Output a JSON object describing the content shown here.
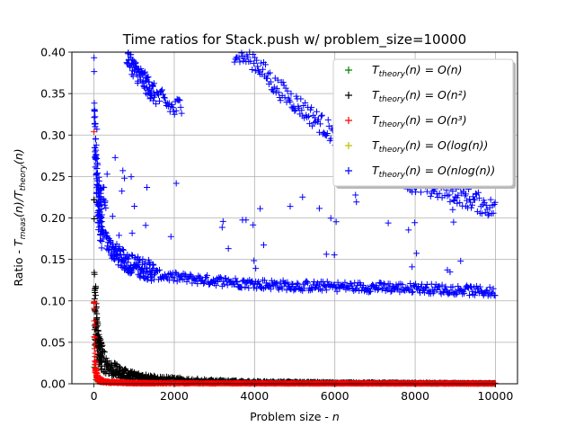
{
  "chart_data": {
    "type": "scatter",
    "title": "Time ratios for Stack.push w/ problem_size=10000",
    "xlabel": "Problem size - n",
    "ylabel": "Ratio - T_meas(n)/T_theory(n)",
    "xlim": [
      -550,
      10550
    ],
    "ylim": [
      0.0,
      0.4
    ],
    "xticks": [
      0,
      2000,
      4000,
      6000,
      8000,
      10000
    ],
    "xtick_labels": [
      "0",
      "2000",
      "4000",
      "6000",
      "8000",
      "10000"
    ],
    "yticks": [
      0.0,
      0.05,
      0.1,
      0.15,
      0.2,
      0.25,
      0.3,
      0.35,
      0.4
    ],
    "ytick_labels": [
      "0.00",
      "0.05",
      "0.10",
      "0.15",
      "0.20",
      "0.25",
      "0.30",
      "0.35",
      "0.40"
    ],
    "grid": true,
    "marker": "+",
    "legend_position": "top-right",
    "series": [
      {
        "name": "T_theory(n) = O(n)",
        "legend_main": "T",
        "legend_sub": "theory",
        "legend_rest": "(n) = O(n)",
        "color": "#008000",
        "note_shape": "near-constant tiny ratio",
        "points": [
          [
            10,
            0.02
          ],
          [
            50,
            0.005
          ],
          [
            200,
            0.002
          ],
          [
            1000,
            0.0007
          ],
          [
            5000,
            0.0003
          ],
          [
            10000,
            0.0002
          ]
        ]
      },
      {
        "name": "T_theory(n) = O(n^2)",
        "legend_main": "T",
        "legend_sub": "theory",
        "legend_rest": "(n) = O(n²)",
        "color": "#000000",
        "anchors": [
          [
            1,
            0.22
          ],
          [
            10,
            0.13
          ],
          [
            30,
            0.09
          ],
          [
            60,
            0.06
          ],
          [
            100,
            0.045
          ],
          [
            200,
            0.03
          ],
          [
            400,
            0.018
          ],
          [
            700,
            0.012
          ],
          [
            1000,
            0.009
          ],
          [
            1500,
            0.006
          ],
          [
            2000,
            0.005
          ],
          [
            3000,
            0.003
          ],
          [
            4000,
            0.002
          ],
          [
            6000,
            0.0012
          ],
          [
            8000,
            0.0008
          ],
          [
            10000,
            0.0005
          ]
        ]
      },
      {
        "name": "T_theory(n) = O(n^3)",
        "legend_main": "T",
        "legend_sub": "theory",
        "legend_rest": "(n) = O(n³)",
        "color": "#ff0000",
        "anchors": [
          [
            1,
            0.23
          ],
          [
            5,
            0.11
          ],
          [
            10,
            0.06
          ],
          [
            20,
            0.035
          ],
          [
            50,
            0.012
          ],
          [
            100,
            0.005
          ],
          [
            300,
            0.002
          ],
          [
            1000,
            0.0008
          ],
          [
            3000,
            0.0005
          ],
          [
            10000,
            0.0003
          ]
        ]
      },
      {
        "name": "T_theory(n) = O(log(n))",
        "legend_main": "T",
        "legend_sub": "theory",
        "legend_rest": "(n) = O(log(n))",
        "color": "#bfbf00",
        "note_shape": "values far above the visible y-range",
        "points": []
      },
      {
        "name": "T_theory(n) = O(nlog(n))",
        "legend_main": "T",
        "legend_sub": "theory",
        "legend_rest": "(n) = O(nlog(n))",
        "color": "#0000ff",
        "lower_band_anchors": [
          [
            1,
            0.39
          ],
          [
            10,
            0.3
          ],
          [
            50,
            0.25
          ],
          [
            100,
            0.21
          ],
          [
            200,
            0.18
          ],
          [
            400,
            0.16
          ],
          [
            700,
            0.145
          ],
          [
            1000,
            0.138
          ],
          [
            1500,
            0.13
          ],
          [
            2000,
            0.126
          ],
          [
            3000,
            0.122
          ],
          [
            4000,
            0.118
          ],
          [
            5000,
            0.116
          ],
          [
            6000,
            0.115
          ],
          [
            7000,
            0.114
          ],
          [
            8000,
            0.113
          ],
          [
            9000,
            0.111
          ],
          [
            10000,
            0.108
          ]
        ],
        "upper_band_anchors": [
          [
            800,
            0.4
          ],
          [
            1000,
            0.38
          ],
          [
            1500,
            0.35
          ],
          [
            2000,
            0.33
          ],
          [
            3500,
            0.4
          ],
          [
            4000,
            0.39
          ],
          [
            4500,
            0.36
          ],
          [
            5000,
            0.34
          ],
          [
            5500,
            0.32
          ],
          [
            6000,
            0.3
          ],
          [
            7000,
            0.28
          ],
          [
            8000,
            0.24
          ],
          [
            9000,
            0.23
          ],
          [
            10000,
            0.21
          ]
        ]
      }
    ]
  }
}
